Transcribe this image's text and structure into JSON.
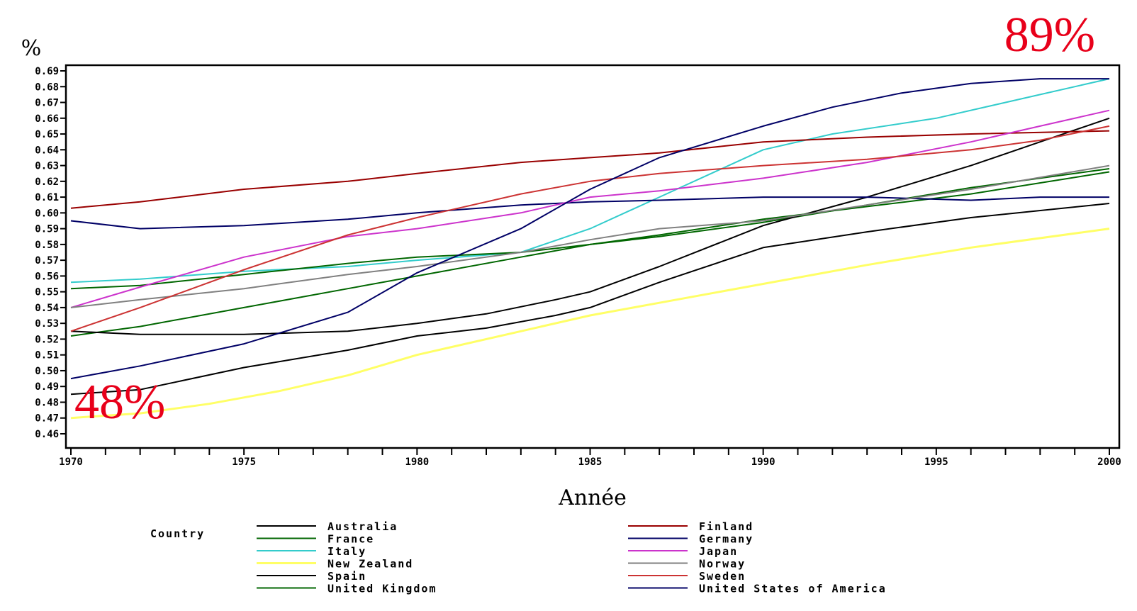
{
  "chart_data": {
    "type": "line",
    "title": "",
    "ylabel": "%",
    "xlabel": "Année",
    "xlim": [
      1970,
      2000
    ],
    "ylim": [
      0.46,
      0.89
    ],
    "x_ticks": [
      "1970",
      "1975",
      "1980",
      "1985",
      "1990",
      "1995",
      "2000"
    ],
    "y_ticks": [
      "0.46",
      "0.47",
      "0.48",
      "0.49",
      "0.50",
      "0.51",
      "0.52",
      "0.53",
      "0.54",
      "0.55",
      "0.56",
      "0.57",
      "0.58",
      "0.59",
      "0.60",
      "0.61",
      "0.62",
      "0.63",
      "0.64",
      "0.65",
      "0.66",
      "0.67",
      "0.68",
      "0.69"
    ],
    "annotations": [
      {
        "text": "89%",
        "color": "#e8001a"
      },
      {
        "text": "48%",
        "color": "#e8001a"
      }
    ],
    "legend_title": "Country",
    "legend_position": "bottom",
    "grid": false,
    "series": [
      {
        "name": "Australia",
        "color": "#000000",
        "x": [
          1970,
          1972,
          1975,
          1978,
          1980,
          1982,
          1984,
          1985,
          1987,
          1990,
          1993,
          1996,
          2000
        ],
        "y": [
          0.485,
          0.488,
          0.502,
          0.513,
          0.522,
          0.527,
          0.535,
          0.54,
          0.556,
          0.578,
          0.588,
          0.597,
          0.606
        ]
      },
      {
        "name": "France",
        "color": "#006600",
        "x": [
          1970,
          1972,
          1975,
          1978,
          1980,
          1983,
          1985,
          1987,
          1990,
          1993,
          1996,
          2000
        ],
        "y": [
          0.522,
          0.528,
          0.54,
          0.552,
          0.56,
          0.572,
          0.58,
          0.585,
          0.594,
          0.605,
          0.616,
          0.628
        ]
      },
      {
        "name": "Italy",
        "color": "#33cccc",
        "x": [
          1970,
          1972,
          1975,
          1978,
          1980,
          1983,
          1985,
          1987,
          1990,
          1992,
          1995,
          1998,
          2000
        ],
        "y": [
          0.556,
          0.558,
          0.563,
          0.566,
          0.57,
          0.575,
          0.59,
          0.61,
          0.64,
          0.65,
          0.66,
          0.675,
          0.685
        ]
      },
      {
        "name": "New Zealand",
        "color": "#ffff66",
        "x": [
          1970,
          1972,
          1974,
          1976,
          1978,
          1980,
          1983,
          1985,
          1987,
          1990,
          1993,
          1996,
          2000
        ],
        "y": [
          0.47,
          0.473,
          0.479,
          0.487,
          0.497,
          0.51,
          0.525,
          0.535,
          0.543,
          0.555,
          0.567,
          0.578,
          0.59
        ]
      },
      {
        "name": "Spain",
        "color": "#000000",
        "x": [
          1970,
          1972,
          1975,
          1978,
          1980,
          1982,
          1984,
          1985,
          1987,
          1990,
          1993,
          1996,
          1998,
          2000
        ],
        "y": [
          0.525,
          0.523,
          0.523,
          0.525,
          0.53,
          0.536,
          0.545,
          0.55,
          0.566,
          0.592,
          0.61,
          0.63,
          0.645,
          0.66
        ]
      },
      {
        "name": "United Kingdom",
        "color": "#006600",
        "x": [
          1970,
          1972,
          1975,
          1978,
          1980,
          1983,
          1985,
          1987,
          1990,
          1993,
          1996,
          2000
        ],
        "y": [
          0.552,
          0.554,
          0.561,
          0.568,
          0.572,
          0.575,
          0.58,
          0.586,
          0.596,
          0.604,
          0.612,
          0.626
        ]
      },
      {
        "name": "Finland",
        "color": "#990000",
        "x": [
          1970,
          1972,
          1975,
          1978,
          1980,
          1983,
          1985,
          1987,
          1990,
          1993,
          1996,
          2000
        ],
        "y": [
          0.603,
          0.607,
          0.615,
          0.62,
          0.625,
          0.632,
          0.635,
          0.638,
          0.645,
          0.648,
          0.65,
          0.652
        ]
      },
      {
        "name": "Germany",
        "color": "#000066",
        "x": [
          1970,
          1972,
          1975,
          1978,
          1980,
          1983,
          1985,
          1987,
          1990,
          1993,
          1996,
          1998,
          2000
        ],
        "y": [
          0.595,
          0.59,
          0.592,
          0.596,
          0.6,
          0.605,
          0.607,
          0.608,
          0.61,
          0.61,
          0.608,
          0.61,
          0.61
        ]
      },
      {
        "name": "Japan",
        "color": "#cc33cc",
        "x": [
          1970,
          1972,
          1975,
          1978,
          1980,
          1983,
          1985,
          1987,
          1990,
          1993,
          1996,
          1998,
          2000
        ],
        "y": [
          0.54,
          0.553,
          0.572,
          0.585,
          0.59,
          0.6,
          0.61,
          0.614,
          0.622,
          0.632,
          0.645,
          0.655,
          0.665
        ]
      },
      {
        "name": "Norway",
        "color": "#808080",
        "x": [
          1970,
          1972,
          1975,
          1978,
          1980,
          1983,
          1985,
          1987,
          1990,
          1993,
          1996,
          2000
        ],
        "y": [
          0.54,
          0.545,
          0.552,
          0.561,
          0.566,
          0.575,
          0.583,
          0.59,
          0.595,
          0.605,
          0.615,
          0.63
        ]
      },
      {
        "name": "Sweden",
        "color": "#cc3333",
        "x": [
          1970,
          1972,
          1975,
          1978,
          1980,
          1983,
          1985,
          1987,
          1990,
          1993,
          1996,
          1998,
          2000
        ],
        "y": [
          0.525,
          0.54,
          0.564,
          0.586,
          0.597,
          0.612,
          0.62,
          0.625,
          0.63,
          0.634,
          0.64,
          0.646,
          0.655
        ]
      },
      {
        "name": "United States of America",
        "color": "#000066",
        "x": [
          1970,
          1972,
          1975,
          1978,
          1980,
          1983,
          1985,
          1987,
          1990,
          1992,
          1994,
          1996,
          1998,
          2000
        ],
        "y": [
          0.495,
          0.503,
          0.517,
          0.537,
          0.562,
          0.59,
          0.615,
          0.635,
          0.655,
          0.667,
          0.676,
          0.682,
          0.685,
          0.685
        ]
      }
    ]
  }
}
